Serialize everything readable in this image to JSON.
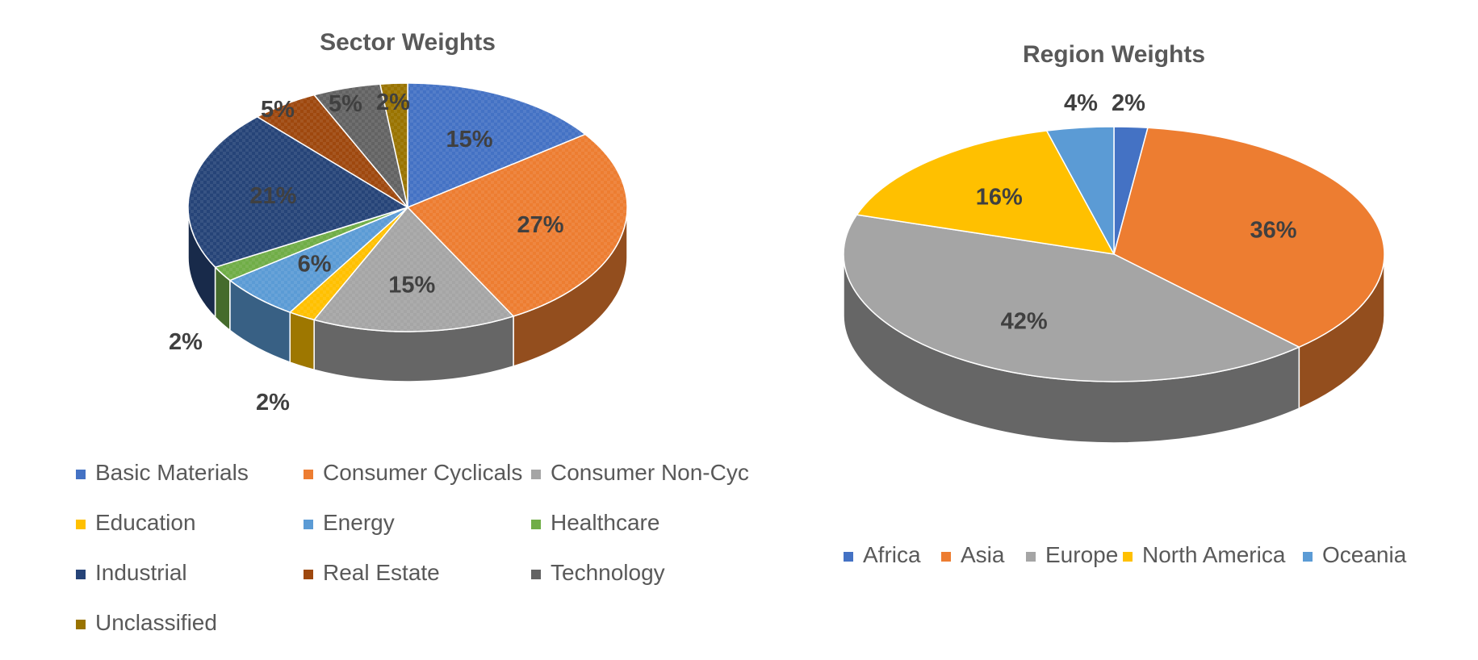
{
  "chart_data": [
    {
      "type": "pie",
      "title": "Sector Weights",
      "categories": [
        "Basic Materials",
        "Consumer Cyclicals",
        "Consumer Non-Cyc",
        "Education",
        "Energy",
        "Healthcare",
        "Industrial",
        "Real Estate",
        "Technology",
        "Unclassified"
      ],
      "values": [
        15,
        27,
        15,
        2,
        6,
        2,
        21,
        5,
        5,
        2
      ],
      "labels": [
        "15%",
        "27%",
        "15%",
        "2%",
        "6%",
        "2%",
        "21%",
        "5%",
        "5%",
        "2%"
      ],
      "colors": [
        "#4472C4",
        "#ED7D31",
        "#A5A5A5",
        "#FFC000",
        "#5B9BD5",
        "#70AD47",
        "#264478",
        "#9E480E",
        "#636363",
        "#997300"
      ],
      "legend": "bottom"
    },
    {
      "type": "pie",
      "title": "Region Weights",
      "categories": [
        "Africa",
        "Asia",
        "Europe",
        "North America",
        "Oceania"
      ],
      "values": [
        2,
        36,
        42,
        16,
        4
      ],
      "labels": [
        "2%",
        "36%",
        "42%",
        "16%",
        "4%"
      ],
      "colors": [
        "#4472C4",
        "#ED7D31",
        "#A5A5A5",
        "#FFC000",
        "#5B9BD5"
      ],
      "legend": "bottom"
    }
  ]
}
